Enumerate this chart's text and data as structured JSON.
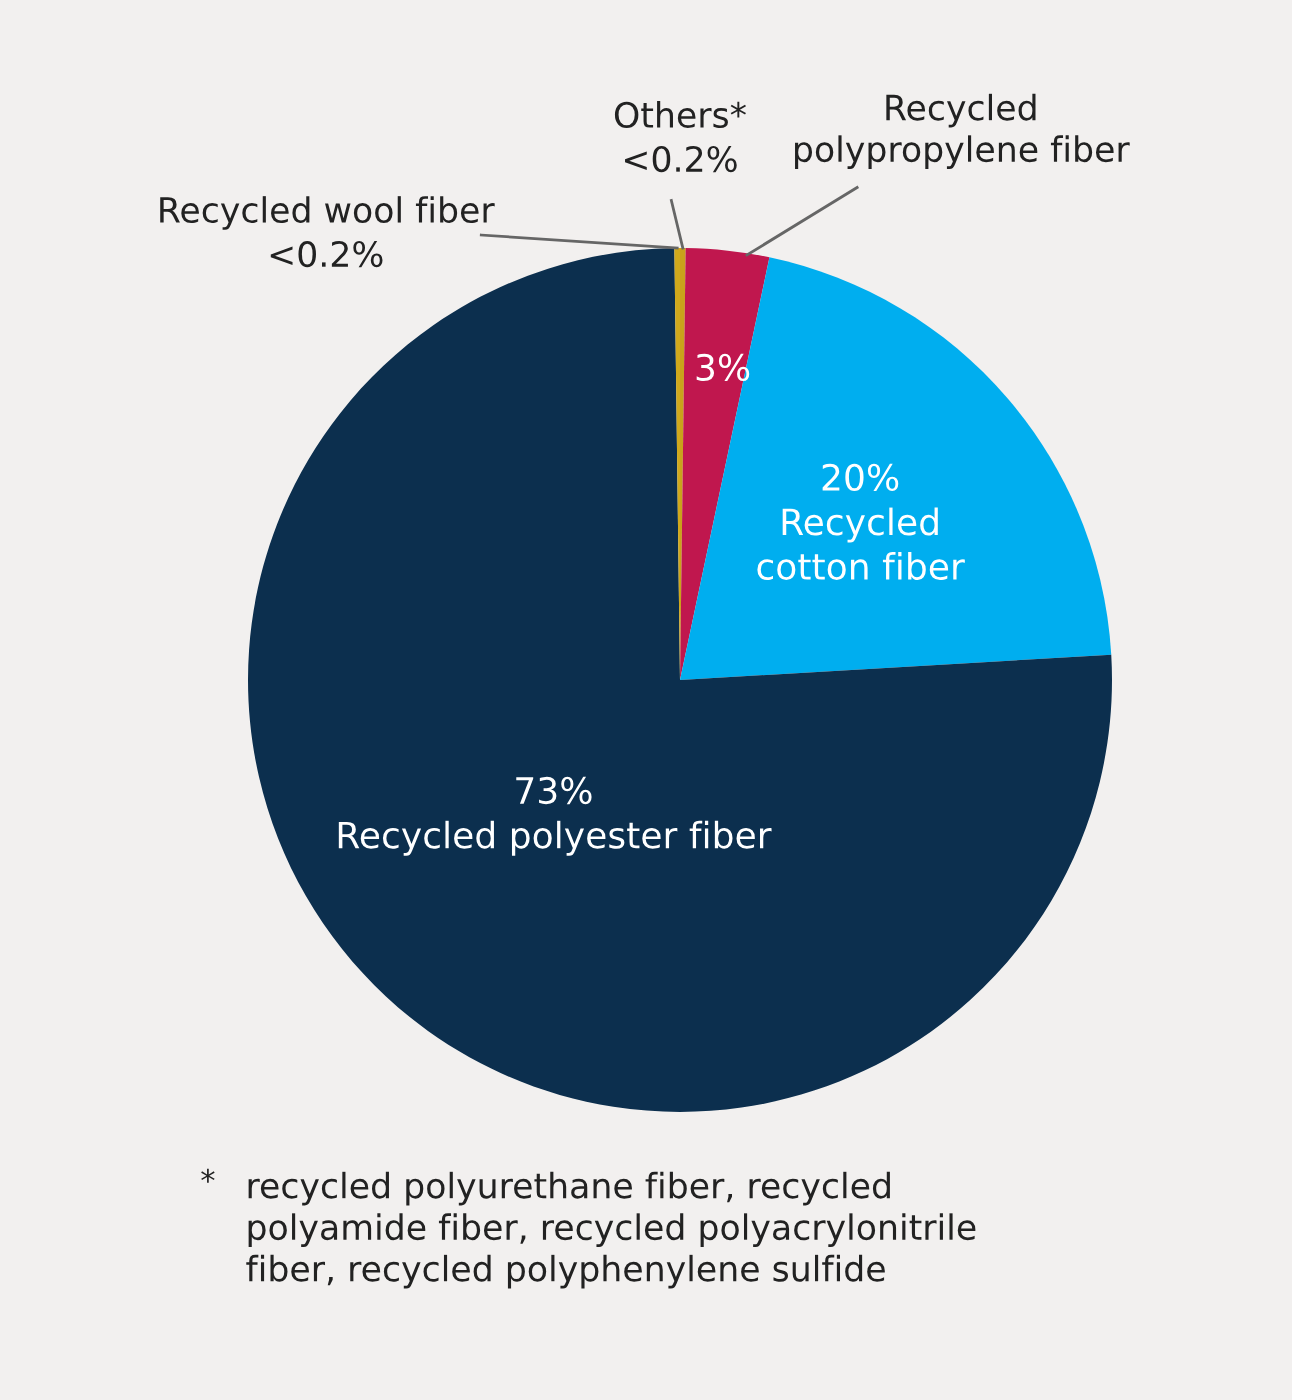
{
  "chart_data": {
    "type": "pie",
    "categories": [
      "Others*",
      "Recycled\npolypropylene fiber",
      "Recycled\ncotton fiber",
      "Recycled polyester fiber",
      "Recycled wool fiber"
    ],
    "values": [
      0.2,
      3,
      20,
      73,
      0.2
    ],
    "value_labels": [
      "<0.2%",
      "3%",
      "20%",
      "73%",
      "<0.2%"
    ],
    "colors": [
      "#c9a21b",
      "#c0174e",
      "#00aeef",
      "#0c2f4e",
      "#d1a91c"
    ],
    "annotations": [
      "*",
      "recycled polyurethane fiber, recycled\npolyamide fiber, recycled polyacrylonitrile\nfiber, recycled polyphenylene sulfide"
    ]
  }
}
